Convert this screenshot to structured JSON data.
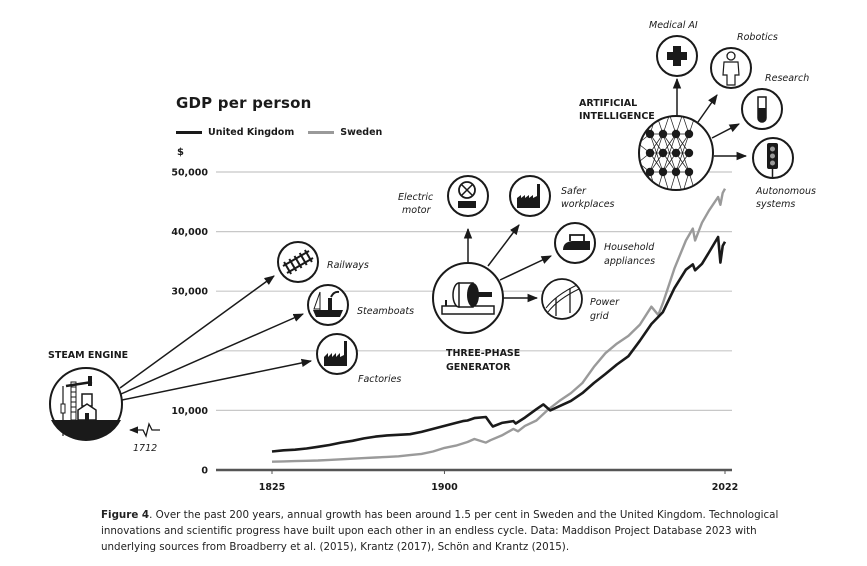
{
  "chart_data": {
    "type": "line",
    "title": "GDP per person",
    "ylabel": "$",
    "xlabel": "",
    "xlim": [
      1825,
      2022
    ],
    "ylim": [
      0,
      50000
    ],
    "grid": true,
    "legend_position": "top-left",
    "x_ticks": [
      1825,
      1900,
      2022
    ],
    "y_ticks": [
      {
        "value": 0,
        "label": "0"
      },
      {
        "value": 10000,
        "label": "10,000"
      },
      {
        "value": 20000,
        "label": ""
      },
      {
        "value": 30000,
        "label": "30,000"
      },
      {
        "value": 40000,
        "label": "40,000"
      },
      {
        "value": 50000,
        "label": "50,000"
      }
    ],
    "series": [
      {
        "name": "United Kingdom",
        "color": "#1a1a1a",
        "x": [
          1825,
          1830,
          1835,
          1840,
          1845,
          1850,
          1855,
          1860,
          1865,
          1870,
          1875,
          1880,
          1885,
          1890,
          1895,
          1900,
          1905,
          1908,
          1910,
          1913,
          1918,
          1920,
          1921,
          1925,
          1930,
          1931,
          1935,
          1940,
          1943,
          1946,
          1950,
          1955,
          1960,
          1965,
          1970,
          1975,
          1980,
          1985,
          1990,
          1995,
          2000,
          2005,
          2008,
          2009,
          2012,
          2015,
          2019,
          2020,
          2021,
          2022
        ],
        "values": [
          3100,
          3300,
          3400,
          3600,
          3900,
          4200,
          4600,
          4900,
          5300,
          5600,
          5800,
          5900,
          6000,
          6400,
          6900,
          7400,
          7900,
          8200,
          8300,
          8700,
          8900,
          7800,
          7300,
          7900,
          8200,
          7800,
          8800,
          10200,
          11000,
          10000,
          10700,
          11600,
          12900,
          14600,
          16100,
          17700,
          19100,
          21700,
          24500,
          26500,
          30500,
          33600,
          34500,
          33500,
          34600,
          36500,
          39100,
          34800,
          37600,
          38300
        ]
      },
      {
        "name": "Sweden",
        "color": "#9a9a9a",
        "x": [
          1825,
          1830,
          1835,
          1840,
          1845,
          1850,
          1855,
          1860,
          1865,
          1870,
          1875,
          1880,
          1885,
          1890,
          1895,
          1900,
          1905,
          1910,
          1913,
          1918,
          1920,
          1925,
          1930,
          1932,
          1935,
          1940,
          1945,
          1950,
          1955,
          1960,
          1965,
          1970,
          1975,
          1980,
          1985,
          1990,
          1993,
          1995,
          2000,
          2005,
          2008,
          2009,
          2012,
          2015,
          2019,
          2020,
          2021,
          2022
        ],
        "values": [
          1400,
          1450,
          1500,
          1550,
          1600,
          1700,
          1800,
          1900,
          2000,
          2100,
          2200,
          2300,
          2500,
          2700,
          3100,
          3700,
          4100,
          4700,
          5200,
          4600,
          5000,
          5800,
          6900,
          6500,
          7400,
          8300,
          10100,
          11600,
          12900,
          14600,
          17300,
          19600,
          21200,
          22500,
          24400,
          27400,
          26000,
          28000,
          33800,
          38500,
          40500,
          38500,
          41500,
          43500,
          45800,
          44500,
          46500,
          47200
        ]
      }
    ]
  },
  "annotations": {
    "steam_engine": {
      "label": "STEAM ENGINE",
      "year_label": "1712",
      "children": [
        "Railways",
        "Steamboats",
        "Factories"
      ]
    },
    "three_phase": {
      "label_line1": "THREE-PHASE",
      "label_line2": "GENERATOR",
      "children": [
        "Electric motor",
        "Safer workplaces",
        "Household appliances",
        "Power grid"
      ]
    },
    "ai": {
      "label_line1": "ARTIFICIAL",
      "label_line2": "INTELLIGENCE",
      "children": [
        "Medical AI",
        "Robotics",
        "Research",
        "Autonomous systems"
      ]
    }
  },
  "labels": {
    "railways": "Railways",
    "steamboats": "Steamboats",
    "factories": "Factories",
    "electric_motor_1": "Electric",
    "electric_motor_2": "motor",
    "safer_1": "Safer",
    "safer_2": "workplaces",
    "household_1": "Household",
    "household_2": "appliances",
    "power_1": "Power",
    "power_2": "grid",
    "medical_ai": "Medical AI",
    "robotics": "Robotics",
    "research": "Research",
    "autonomous_1": "Autonomous",
    "autonomous_2": "systems",
    "steam_engine": "STEAM ENGINE",
    "year_1712": "1712",
    "three_phase_1": "THREE-PHASE",
    "three_phase_2": "GENERATOR",
    "ai_1": "ARTIFICIAL",
    "ai_2": "INTELLIGENCE"
  },
  "caption": {
    "figure_label": "Figure 4",
    "text": ". Over the past 200 years, annual growth has been around 1.5 per cent in Sweden and the United Kingdom. Technological innovations and scientific progress have built upon each other in an endless cycle. Data: Maddison Project Database 2023 with underlying sources from Broadberry et al. (2015), Krantz (2017), Schön and Krantz (2015)."
  }
}
